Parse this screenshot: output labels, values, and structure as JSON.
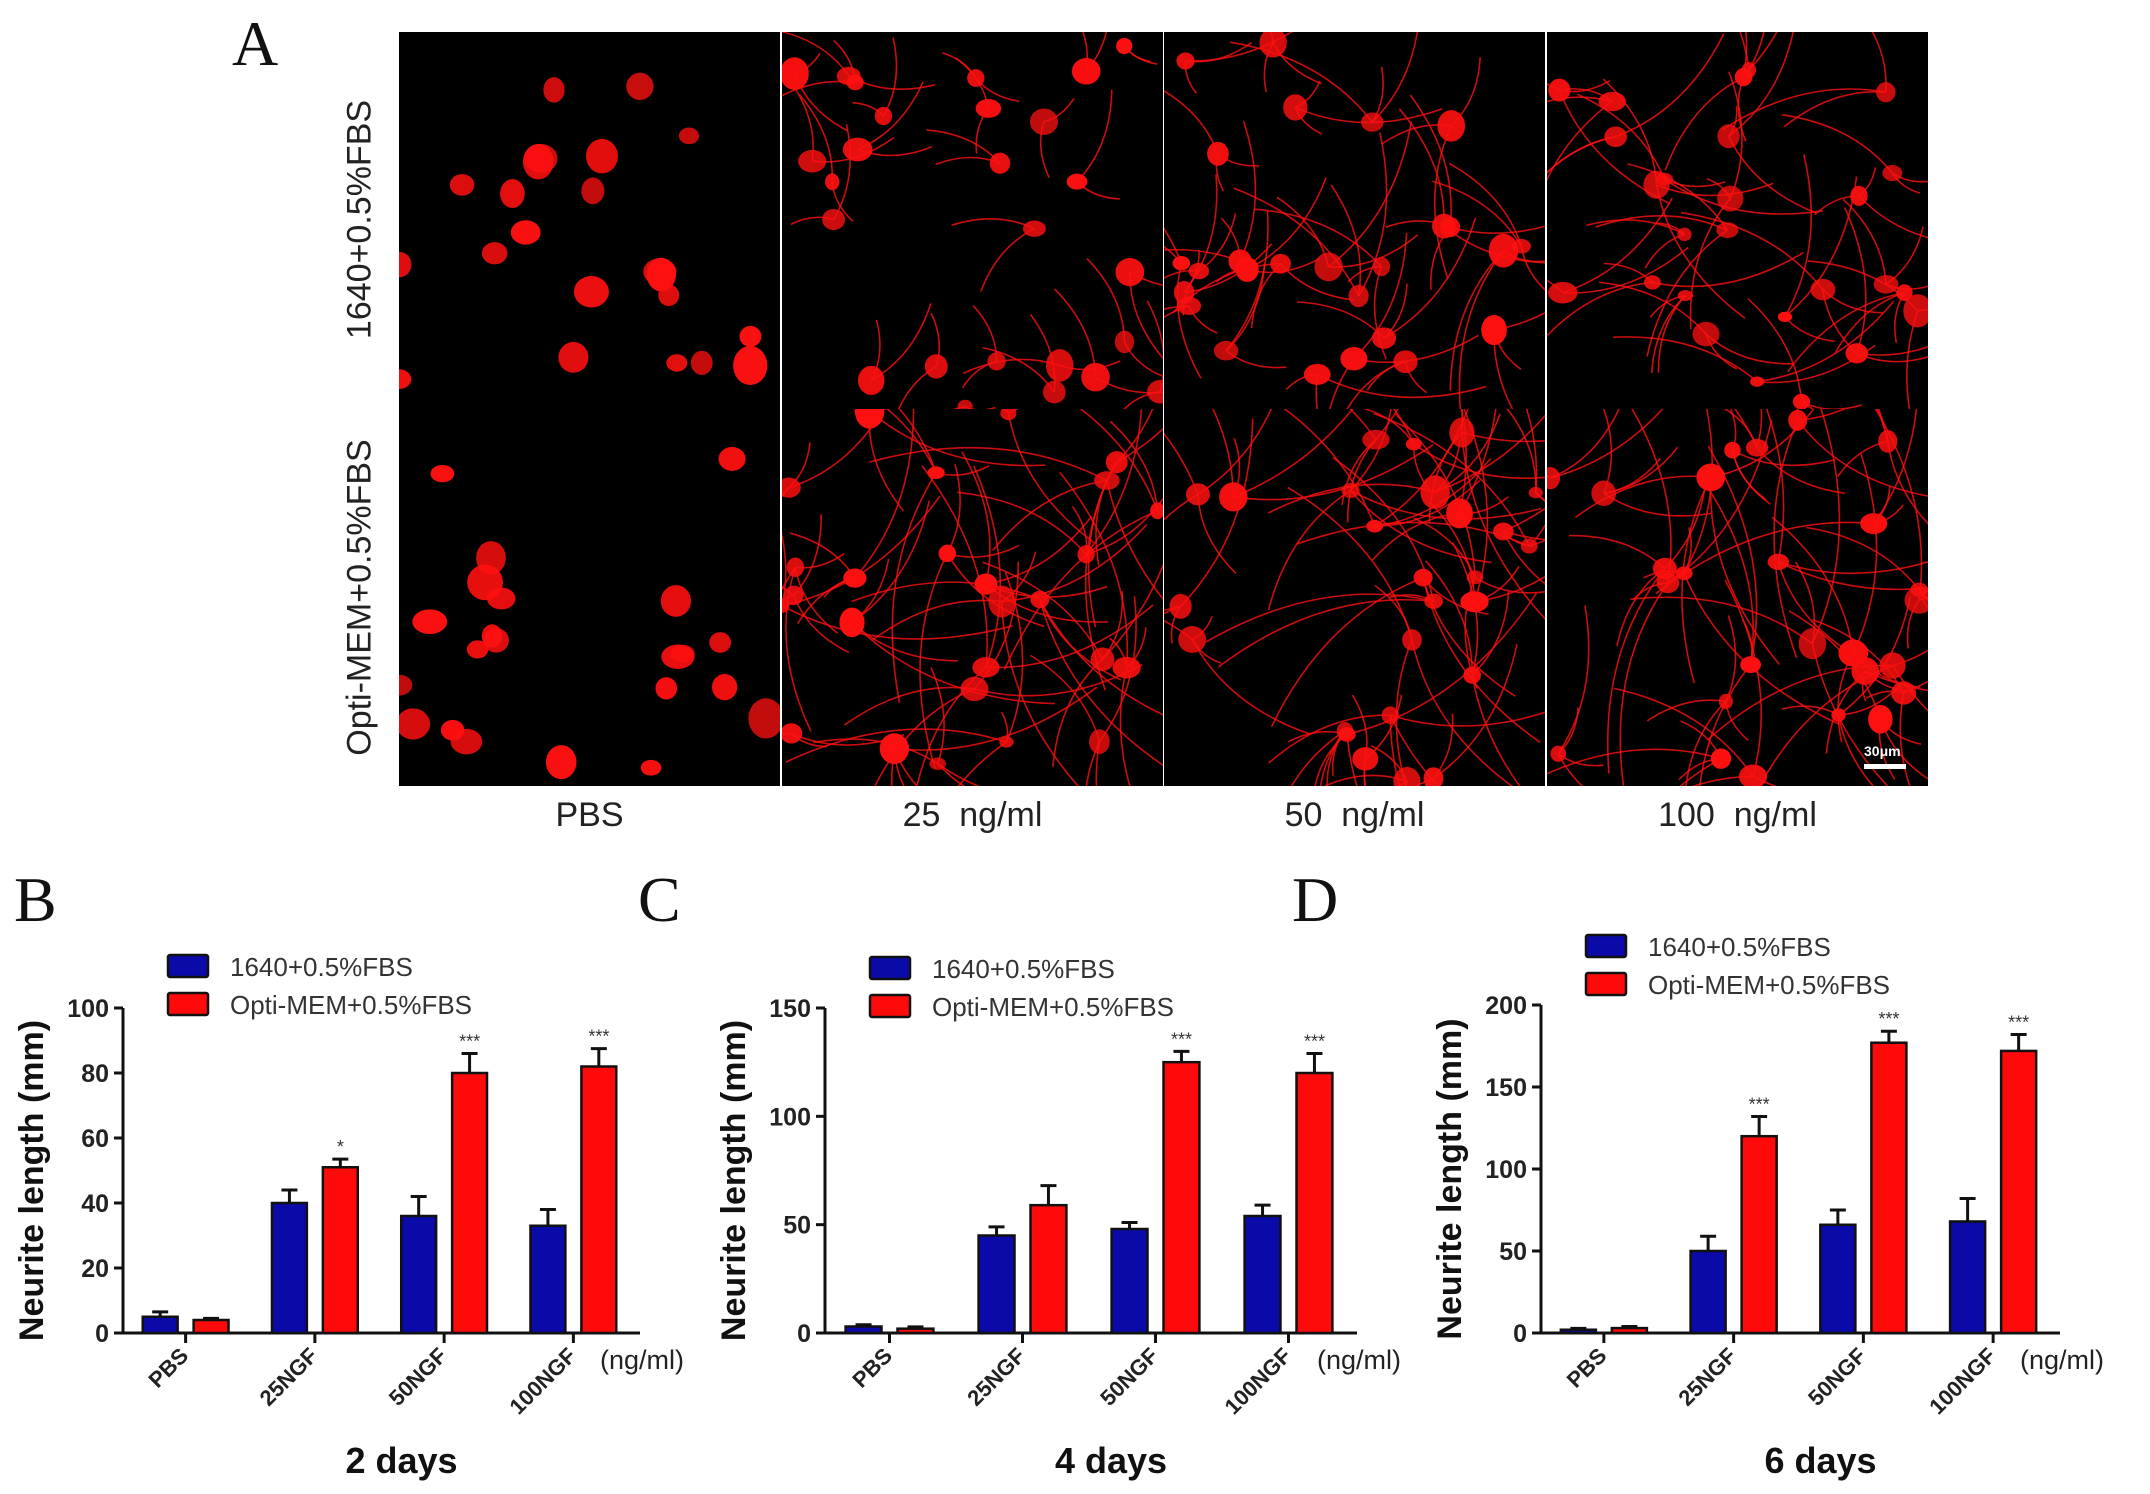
{
  "figure": {
    "panel_labels": [
      "A",
      "B",
      "C",
      "D"
    ],
    "panel_a": {
      "row_labels": [
        "1640+0.5%FBS",
        "Opti-MEM+0.5%FBS"
      ],
      "column_labels": [
        "PBS",
        "25  ng/ml",
        "50  ng/ml",
        "100  ng/ml"
      ],
      "scale_bar": "30μm",
      "stain_color": "#ff1010"
    }
  },
  "chart_data": [
    {
      "type": "bar",
      "panel": "B",
      "title": "2 days",
      "ylabel": "Neurite length (mm)",
      "xlabel": "(ng/ml)",
      "categories": [
        "PBS",
        "25NGF",
        "50NGF",
        "100NGF"
      ],
      "ylim": [
        0,
        100
      ],
      "yticks": [
        0,
        20,
        40,
        60,
        80,
        100
      ],
      "legend": "top",
      "series": [
        {
          "name": "1640+0.5%FBS",
          "color": "#0a0aa8",
          "values": [
            5,
            40,
            36,
            33
          ],
          "errors": [
            1.5,
            4,
            6,
            5
          ]
        },
        {
          "name": "Opti-MEM+0.5%FBS",
          "color": "#ff0a0a",
          "values": [
            4,
            51,
            80,
            82
          ],
          "errors": [
            0.5,
            2.5,
            6,
            5.5
          ]
        }
      ],
      "significance": [
        "",
        "*",
        "***",
        "***"
      ]
    },
    {
      "type": "bar",
      "panel": "C",
      "title": "4 days",
      "ylabel": "Neurite length (mm)",
      "xlabel": "(ng/ml)",
      "categories": [
        "PBS",
        "25NGF",
        "50NGF",
        "100NGF"
      ],
      "ylim": [
        0,
        150
      ],
      "yticks": [
        0,
        50,
        100,
        150
      ],
      "legend": "top",
      "series": [
        {
          "name": "1640+0.5%FBS",
          "color": "#0a0aa8",
          "values": [
            3,
            45,
            48,
            54
          ],
          "errors": [
            0.8,
            4,
            3,
            5
          ]
        },
        {
          "name": "Opti-MEM+0.5%FBS",
          "color": "#ff0a0a",
          "values": [
            2,
            59,
            125,
            120
          ],
          "errors": [
            0.8,
            9,
            5,
            9
          ]
        }
      ],
      "significance": [
        "",
        "",
        "***",
        "***"
      ]
    },
    {
      "type": "bar",
      "panel": "D",
      "title": "6 days",
      "ylabel": "Neurite length (mm)",
      "xlabel": "(ng/ml)",
      "categories": [
        "PBS",
        "25NGF",
        "50NGF",
        "100NGF"
      ],
      "ylim": [
        0,
        200
      ],
      "yticks": [
        0,
        50,
        100,
        150,
        200
      ],
      "legend": "top",
      "series": [
        {
          "name": "1640+0.5%FBS",
          "color": "#0a0aa8",
          "values": [
            2,
            50,
            66,
            68
          ],
          "errors": [
            0.8,
            9,
            9,
            14
          ]
        },
        {
          "name": "Opti-MEM+0.5%FBS",
          "color": "#ff0a0a",
          "values": [
            3,
            120,
            177,
            172
          ],
          "errors": [
            1,
            12,
            7,
            10
          ]
        }
      ],
      "significance": [
        "",
        "***",
        "***",
        "***"
      ]
    }
  ]
}
